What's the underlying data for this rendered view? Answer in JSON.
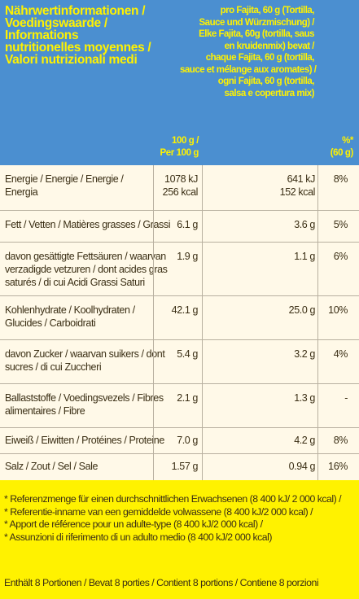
{
  "header": {
    "title_lines": [
      "Nährwertinformationen /",
      "Voedingswaarde /",
      "Informations",
      "nutritionelles moyennes /",
      "Valori nutrizionali medi"
    ],
    "serving_lines": [
      "pro Fajita, 60 g (Tortilla,",
      "Sauce und Würzmischung) /",
      "Elke Fajita, 60g (tortilla, saus",
      "en kruidenmix) bevat /",
      "chaque Fajita, 60 g (tortilla,",
      "sauce et mélange aux aromates) /",
      "ogni Fajita, 60 g (tortilla,",
      "salsa e copertura mix)"
    ],
    "per100_lines": [
      "100 g /",
      "Per 100 g"
    ],
    "percent_lines": [
      "%*",
      "(60 g)"
    ]
  },
  "rows": [
    {
      "label": [
        "Energie / Energie / Energie /",
        "Energia"
      ],
      "per100": [
        "1078 kJ",
        "256 kcal"
      ],
      "serving": [
        "641 kJ",
        "152 kcal"
      ],
      "percent": "8%"
    },
    {
      "label": [
        "Fett / Vetten / Matières grasses / Grassi"
      ],
      "per100": [
        "6.1 g"
      ],
      "serving": [
        "3.6 g"
      ],
      "percent": "5%"
    },
    {
      "label": [
        "davon gesättigte Fettsäuren / waarvan",
        "verzadigde vetzuren / dont acides gras",
        "saturés / di cui Acidi Grassi Saturi"
      ],
      "per100": [
        "1.9 g"
      ],
      "serving": [
        "1.1 g"
      ],
      "percent": "6%"
    },
    {
      "label": [
        "Kohlenhydrate / Koolhydraten /",
        "Glucides / Carboidrati"
      ],
      "per100": [
        "42.1 g"
      ],
      "serving": [
        "25.0 g"
      ],
      "percent": "10%"
    },
    {
      "label": [
        "davon Zucker / waarvan suikers / dont",
        "sucres / di cui Zuccheri"
      ],
      "per100": [
        "5.4 g"
      ],
      "serving": [
        "3.2 g"
      ],
      "percent": "4%"
    },
    {
      "label": [
        "Ballaststoffe / Voedingsvezels / Fibres",
        "alimentaires / Fibre"
      ],
      "per100": [
        "2.1 g"
      ],
      "serving": [
        "1.3 g"
      ],
      "percent": "-"
    },
    {
      "label": [
        "Eiweiß / Eiwitten / Protéines / Proteine"
      ],
      "per100": [
        "7.0 g"
      ],
      "serving": [
        "4.2 g"
      ],
      "percent": "8%"
    },
    {
      "label": [
        "Salz / Zout / Sel / Sale"
      ],
      "per100": [
        "1.57 g"
      ],
      "serving": [
        "0.94 g"
      ],
      "percent": "16%"
    }
  ],
  "footnotes": [
    "* Referenzmenge für einen durchschnittlichen Erwachsenen (8 400 kJ/ 2 000 kcal) /",
    "* Referentie-inname van een gemiddelde volwassene (8 400 kJ/2 000 kcal) /",
    "* Apport de référence pour un adulte-type (8 400 kJ/2 000 kcal) /",
    "* Assunzioni di riferimento di un adulto medio (8 400 kJ/2 000 kcal)"
  ],
  "portions": "Enthält 8 Portionen / Bevat 8 porties / Contient 8 portions / Contiene 8 porzioni"
}
